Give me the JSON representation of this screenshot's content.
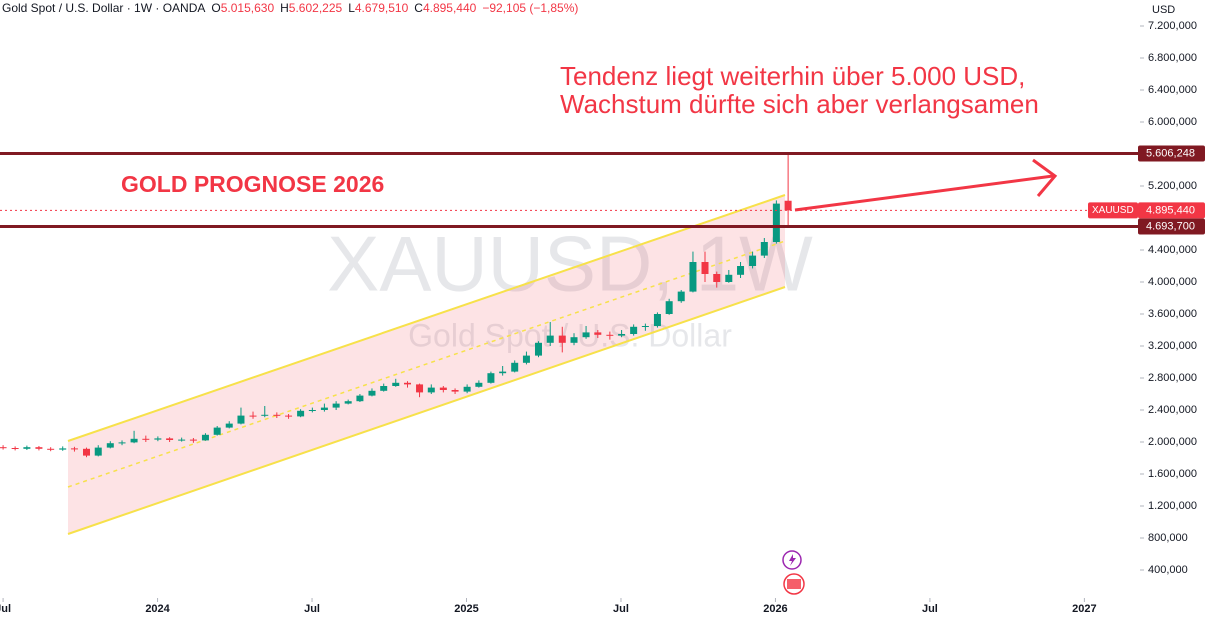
{
  "header": {
    "symbol": "Gold Spot / U.S. Dollar · 1W · OANDA",
    "fields": [
      {
        "key": "O",
        "value": "5.015,630"
      },
      {
        "key": "H",
        "value": "5.602,225"
      },
      {
        "key": "L",
        "value": "4.679,510"
      },
      {
        "key": "C",
        "value": "4.895,440"
      }
    ],
    "change": "−92,105 (−1,85%)"
  },
  "chart_data": {
    "type": "candlestick",
    "currency": "USD",
    "watermark": "XAUUSD, 1W",
    "watermark_subtitle": "Gold Spot / U.S. Dollar",
    "annotations": [
      "Tendenz liegt weiterhin über 5.000 USD,",
      "Wachstum dürfte sich aber verlangsamen",
      "GOLD PROGNOSE 2026"
    ],
    "up_color": "#089981",
    "down_color": "#f23645",
    "grid": false,
    "xlim": [
      2023.49,
      2027.18
    ],
    "xticks": [
      {
        "value": 2023.5,
        "label": "Jul"
      },
      {
        "value": 2024,
        "label": "2024"
      },
      {
        "value": 2024.5,
        "label": "Jul"
      },
      {
        "value": 2025,
        "label": "2025"
      },
      {
        "value": 2025.5,
        "label": "Jul"
      },
      {
        "value": 2026,
        "label": "2026"
      },
      {
        "value": 2026.5,
        "label": "Jul"
      },
      {
        "value": 2027,
        "label": "2027"
      }
    ],
    "ylim": [
      50,
      7525
    ],
    "yticks": [
      {
        "value": 400,
        "label": "400,000"
      },
      {
        "value": 800,
        "label": "800,000"
      },
      {
        "value": 1200,
        "label": "1.200,000"
      },
      {
        "value": 1600,
        "label": "1.600,000"
      },
      {
        "value": 2000,
        "label": "2.000,000"
      },
      {
        "value": 2400,
        "label": "2.400,000"
      },
      {
        "value": 2800,
        "label": "2.800,000"
      },
      {
        "value": 3200,
        "label": "3.200,000"
      },
      {
        "value": 3600,
        "label": "3.600,000"
      },
      {
        "value": 4000,
        "label": "4.000,000"
      },
      {
        "value": 4400,
        "label": "4.400,000"
      },
      {
        "value": 5200,
        "label": "5.200,000"
      },
      {
        "value": 6000,
        "label": "6.000,000"
      },
      {
        "value": 6400,
        "label": "6.400,000"
      },
      {
        "value": 6800,
        "label": "6.800,000"
      },
      {
        "value": 7200,
        "label": "7.200,000"
      }
    ],
    "levels": [
      {
        "value": 5606.248,
        "label": "5.606,248",
        "color": "#801922"
      },
      {
        "value": 4693.7,
        "label": "4.693,700",
        "color": "#801922"
      }
    ],
    "last_price": {
      "value": 4895.44,
      "label": "4.895,440",
      "tag": "XAUUSD",
      "color": "#f23645"
    },
    "x": [
      2023.5,
      2023.539,
      2023.577,
      2023.616,
      2023.654,
      2023.693,
      2023.731,
      2023.77,
      2023.808,
      2023.847,
      2023.885,
      2023.924,
      2023.962,
      2024.001,
      2024.039,
      2024.078,
      2024.116,
      2024.155,
      2024.193,
      2024.232,
      2024.27,
      2024.309,
      2024.347,
      2024.386,
      2024.424,
      2024.463,
      2024.501,
      2024.54,
      2024.578,
      2024.617,
      2024.655,
      2024.694,
      2024.732,
      2024.771,
      2024.809,
      2024.848,
      2024.886,
      2024.925,
      2024.963,
      2025.002,
      2025.04,
      2025.079,
      2025.117,
      2025.156,
      2025.194,
      2025.233,
      2025.271,
      2025.31,
      2025.348,
      2025.387,
      2025.425,
      2025.464,
      2025.502,
      2025.541,
      2025.579,
      2025.618,
      2025.656,
      2025.695,
      2025.733,
      2025.772,
      2025.81,
      2025.849,
      2025.887,
      2025.926,
      2025.964,
      2026.003,
      2026.041
    ],
    "open": [
      1935,
      1925,
      1915,
      1935,
      1915,
      1905,
      1920,
      1915,
      1830,
      1930,
      1985,
      1995,
      2040,
      2030,
      2045,
      2025,
      2030,
      2020,
      2090,
      2180,
      2230,
      2330,
      2330,
      2340,
      2330,
      2320,
      2390,
      2400,
      2430,
      2480,
      2510,
      2580,
      2640,
      2700,
      2740,
      2720,
      2620,
      2680,
      2650,
      2630,
      2690,
      2740,
      2860,
      2880,
      2990,
      3080,
      3240,
      3330,
      3240,
      3310,
      3370,
      3340,
      3330,
      3350,
      3440,
      3450,
      3600,
      3760,
      3880,
      4250,
      4100,
      4000,
      4090,
      4200,
      4330,
      4500,
      5015.63
    ],
    "high": [
      1960,
      1945,
      1955,
      1950,
      1935,
      1945,
      1940,
      1930,
      1960,
      2010,
      2020,
      2140,
      2080,
      2070,
      2060,
      2055,
      2050,
      2110,
      2200,
      2260,
      2430,
      2380,
      2450,
      2370,
      2350,
      2410,
      2430,
      2480,
      2510,
      2530,
      2600,
      2670,
      2730,
      2790,
      2760,
      2730,
      2720,
      2700,
      2670,
      2720,
      2770,
      2880,
      2950,
      3020,
      3130,
      3260,
      3500,
      3440,
      3360,
      3450,
      3400,
      3380,
      3400,
      3470,
      3480,
      3620,
      3790,
      3900,
      4380,
      4380,
      4130,
      4150,
      4250,
      4380,
      4550,
      5020,
      5602.225
    ],
    "low": [
      1905,
      1895,
      1900,
      1895,
      1885,
      1890,
      1880,
      1810,
      1820,
      1920,
      1960,
      1985,
      2000,
      2010,
      2000,
      2005,
      1990,
      2015,
      2080,
      2170,
      2220,
      2290,
      2310,
      2300,
      2290,
      2310,
      2370,
      2380,
      2400,
      2470,
      2500,
      2570,
      2630,
      2690,
      2680,
      2560,
      2600,
      2620,
      2600,
      2610,
      2680,
      2730,
      2830,
      2870,
      2970,
      3060,
      3200,
      3120,
      3210,
      3290,
      3300,
      3280,
      3310,
      3330,
      3390,
      3430,
      3590,
      3740,
      3870,
      4000,
      3930,
      3990,
      4050,
      4170,
      4300,
      4480,
      4679.51
    ],
    "close": [
      1925,
      1915,
      1935,
      1915,
      1905,
      1920,
      1915,
      1830,
      1930,
      1985,
      1995,
      2040,
      2030,
      2045,
      2025,
      2030,
      2020,
      2090,
      2180,
      2230,
      2330,
      2320,
      2340,
      2330,
      2320,
      2390,
      2400,
      2430,
      2480,
      2510,
      2580,
      2640,
      2700,
      2740,
      2720,
      2620,
      2680,
      2650,
      2630,
      2690,
      2740,
      2860,
      2880,
      2990,
      3080,
      3240,
      3330,
      3240,
      3310,
      3370,
      3340,
      3330,
      3350,
      3440,
      3450,
      3600,
      3760,
      3880,
      4250,
      4100,
      4000,
      4090,
      4200,
      4330,
      4500,
      4980,
      4895.44
    ]
  }
}
